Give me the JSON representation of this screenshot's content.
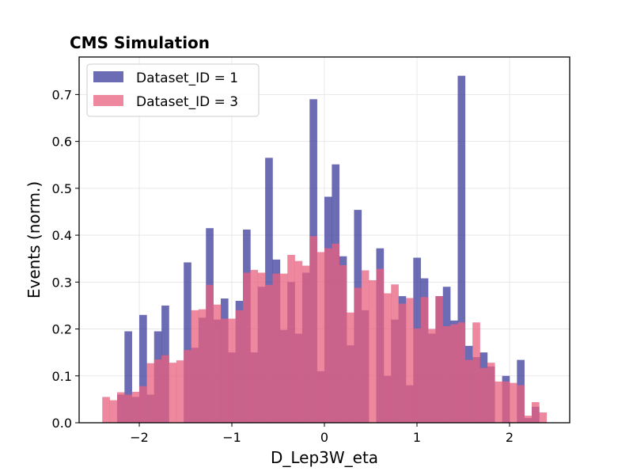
{
  "chart_data": {
    "type": "bar",
    "title": "CMS Simulation",
    "xlabel": "D_Lep3W_eta",
    "ylabel": "Events (norm.)",
    "xlim": [
      -2.65,
      2.65
    ],
    "ylim": [
      0,
      0.78
    ],
    "xticks": [
      -2,
      -1,
      0,
      1,
      2
    ],
    "xtick_labels": [
      "−2",
      "−1",
      "0",
      "1",
      "2"
    ],
    "yticks": [
      0.0,
      0.1,
      0.2,
      0.3,
      0.4,
      0.5,
      0.6,
      0.7
    ],
    "ytick_labels": [
      "0.0",
      "0.1",
      "0.2",
      "0.3",
      "0.4",
      "0.5",
      "0.6",
      "0.7"
    ],
    "grid": true,
    "legend_position": "top-left",
    "bin_edges": [
      -2.4,
      -2.32,
      -2.24,
      -2.16,
      -2.08,
      -2.0,
      -1.92,
      -1.84,
      -1.76,
      -1.68,
      -1.6,
      -1.52,
      -1.44,
      -1.36,
      -1.28,
      -1.2,
      -1.12,
      -1.04,
      -0.96,
      -0.88,
      -0.8,
      -0.72,
      -0.64,
      -0.56,
      -0.48,
      -0.4,
      -0.32,
      -0.24,
      -0.16,
      -0.08,
      0.0,
      0.08,
      0.16,
      0.24,
      0.32,
      0.4,
      0.48,
      0.56,
      0.64,
      0.72,
      0.8,
      0.88,
      0.96,
      1.04,
      1.12,
      1.2,
      1.28,
      1.36,
      1.44,
      1.52,
      1.6,
      1.68,
      1.76,
      1.84,
      1.92,
      2.0,
      2.08,
      2.16,
      2.24,
      2.32,
      2.4
    ],
    "series": [
      {
        "name": "Dataset_ID = 1",
        "color": "#3b3b9c",
        "values": [
          0.0,
          0.0,
          0.06,
          0.195,
          0.055,
          0.23,
          0.06,
          0.195,
          0.25,
          0.0,
          0.0,
          0.342,
          0.16,
          0.224,
          0.415,
          0.22,
          0.265,
          0.15,
          0.26,
          0.412,
          0.15,
          0.29,
          0.565,
          0.348,
          0.198,
          0.3,
          0.19,
          0.32,
          0.69,
          0.11,
          0.482,
          0.551,
          0.355,
          0.165,
          0.454,
          0.24,
          0.0,
          0.372,
          0.1,
          0.22,
          0.27,
          0.08,
          0.352,
          0.308,
          0.19,
          0.27,
          0.29,
          0.218,
          0.74,
          0.164,
          0.14,
          0.15,
          0.12,
          0.0,
          0.1,
          0.0,
          0.134,
          0.01,
          0.034,
          0.0
        ]
      },
      {
        "name": "Dataset_ID = 3",
        "color": "#e8607e",
        "values": [
          0.055,
          0.048,
          0.065,
          0.06,
          0.066,
          0.078,
          0.127,
          0.135,
          0.144,
          0.128,
          0.133,
          0.155,
          0.24,
          0.242,
          0.294,
          0.252,
          0.222,
          0.222,
          0.24,
          0.32,
          0.326,
          0.32,
          0.294,
          0.318,
          0.318,
          0.358,
          0.345,
          0.335,
          0.398,
          0.364,
          0.372,
          0.382,
          0.336,
          0.235,
          0.288,
          0.325,
          0.304,
          0.328,
          0.276,
          0.295,
          0.254,
          0.266,
          0.201,
          0.268,
          0.2,
          0.27,
          0.206,
          0.21,
          0.214,
          0.134,
          0.214,
          0.117,
          0.128,
          0.088,
          0.088,
          0.085,
          0.08,
          0.015,
          0.044,
          0.022
        ]
      }
    ]
  }
}
